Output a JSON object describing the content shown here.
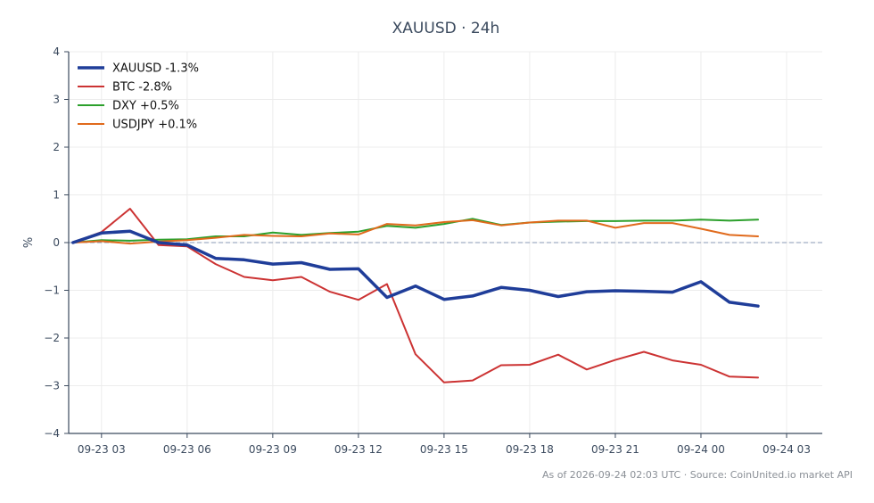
{
  "chart_data": {
    "type": "line",
    "title": "XAUUSD · 24h",
    "xlabel": "",
    "ylabel": "%",
    "ylim": [
      -4,
      4
    ],
    "yticks": [
      4,
      3,
      2,
      1,
      0,
      -1,
      -2,
      -3,
      -4
    ],
    "ytick_labels": [
      "4",
      "3",
      "2",
      "1",
      "0",
      "−1",
      "−2",
      "−3",
      "−4"
    ],
    "xlim": [
      1.85,
      28.25
    ],
    "xticks": [
      {
        "x": 3,
        "label": "09-23 03"
      },
      {
        "x": 6,
        "label": "09-23 06"
      },
      {
        "x": 9,
        "label": "09-23 09"
      },
      {
        "x": 12,
        "label": "09-23 12"
      },
      {
        "x": 15,
        "label": "09-23 15"
      },
      {
        "x": 18,
        "label": "09-23 18"
      },
      {
        "x": 21,
        "label": "09-23 21"
      },
      {
        "x": 24,
        "label": "09-24 00"
      },
      {
        "x": 27,
        "label": "09-24 03"
      }
    ],
    "x": [
      2,
      3,
      4,
      5,
      6,
      7,
      8,
      9,
      10,
      11,
      12,
      13,
      14,
      15,
      16,
      17,
      18,
      19,
      20,
      21,
      22,
      23,
      24,
      25,
      26
    ],
    "grid": true,
    "zero_line": true,
    "legend_position": "top-left",
    "series": [
      {
        "name": "XAUUSD -1.3%",
        "color": "#1f3d99",
        "width": 3.5,
        "values": [
          0,
          0.2,
          0.24,
          0.0,
          -0.05,
          -0.33,
          -0.36,
          -0.45,
          -0.42,
          -0.56,
          -0.55,
          -1.15,
          -0.91,
          -1.19,
          -1.12,
          -0.94,
          -1.0,
          -1.13,
          -1.03,
          -1.01,
          -1.02,
          -1.04,
          -0.82,
          -1.25,
          -1.33
        ]
      },
      {
        "name": "BTC -2.8%",
        "color": "#cc3333",
        "width": 2,
        "values": [
          0,
          0.22,
          0.71,
          -0.05,
          -0.08,
          -0.45,
          -0.72,
          -0.79,
          -0.72,
          -1.03,
          -1.2,
          -0.87,
          -2.34,
          -2.93,
          -2.89,
          -2.57,
          -2.56,
          -2.35,
          -2.66,
          -2.46,
          -2.29,
          -2.47,
          -2.56,
          -2.81,
          -2.83
        ]
      },
      {
        "name": "DXY +0.5%",
        "color": "#2ca02c",
        "width": 2,
        "values": [
          0,
          0.05,
          0.04,
          0.06,
          0.07,
          0.13,
          0.13,
          0.21,
          0.16,
          0.2,
          0.23,
          0.35,
          0.31,
          0.39,
          0.5,
          0.37,
          0.42,
          0.44,
          0.45,
          0.45,
          0.46,
          0.46,
          0.48,
          0.46,
          0.48
        ]
      },
      {
        "name": "USDJPY +0.1%",
        "color": "#e06a1c",
        "width": 2,
        "values": [
          0,
          0.03,
          -0.02,
          0.02,
          0.05,
          0.1,
          0.16,
          0.14,
          0.13,
          0.19,
          0.17,
          0.39,
          0.36,
          0.43,
          0.47,
          0.36,
          0.42,
          0.46,
          0.46,
          0.31,
          0.41,
          0.41,
          0.29,
          0.16,
          0.13
        ]
      }
    ]
  },
  "footer": "As of 2026-09-24 02:03 UTC · Source: CoinUnited.io market API"
}
